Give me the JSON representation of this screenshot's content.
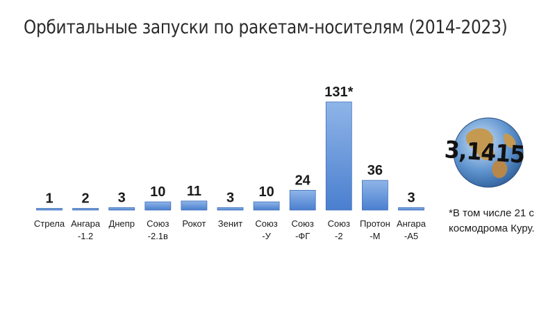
{
  "title": "Орбитальные запуски по ракетам-носителям (2014-2023)",
  "footnote": "*В том числе 21 с космодрома Куру.",
  "logo_text": "3,1415",
  "colors": {
    "bar_top": "#8fb5e8",
    "bar_bottom": "#4a7fcf",
    "bar_stroke": "#3f6fb8",
    "label": "#1a1a1a"
  },
  "chart_data": {
    "type": "bar",
    "title": "Орбитальные запуски по ракетам-носителям (2014-2023)",
    "xlabel": "",
    "ylabel": "",
    "grid": false,
    "ylim": [
      0,
      131
    ],
    "categories": [
      [
        "Стрела"
      ],
      [
        "Ангара",
        "-1.2"
      ],
      [
        "Днепр"
      ],
      [
        "Союз",
        "-2.1в"
      ],
      [
        "Рокот"
      ],
      [
        "Зенит"
      ],
      [
        "Союз",
        "-У"
      ],
      [
        "Союз",
        "-ФГ"
      ],
      [
        "Союз",
        "-2"
      ],
      [
        "Протон",
        "-М"
      ],
      [
        "Ангара",
        "-А5"
      ]
    ],
    "values": [
      1,
      2,
      3,
      10,
      11,
      3,
      10,
      24,
      131,
      36,
      3
    ],
    "data_labels": [
      "1",
      "2",
      "3",
      "10",
      "11",
      "3",
      "10",
      "24",
      "131*",
      "36",
      "3"
    ]
  }
}
